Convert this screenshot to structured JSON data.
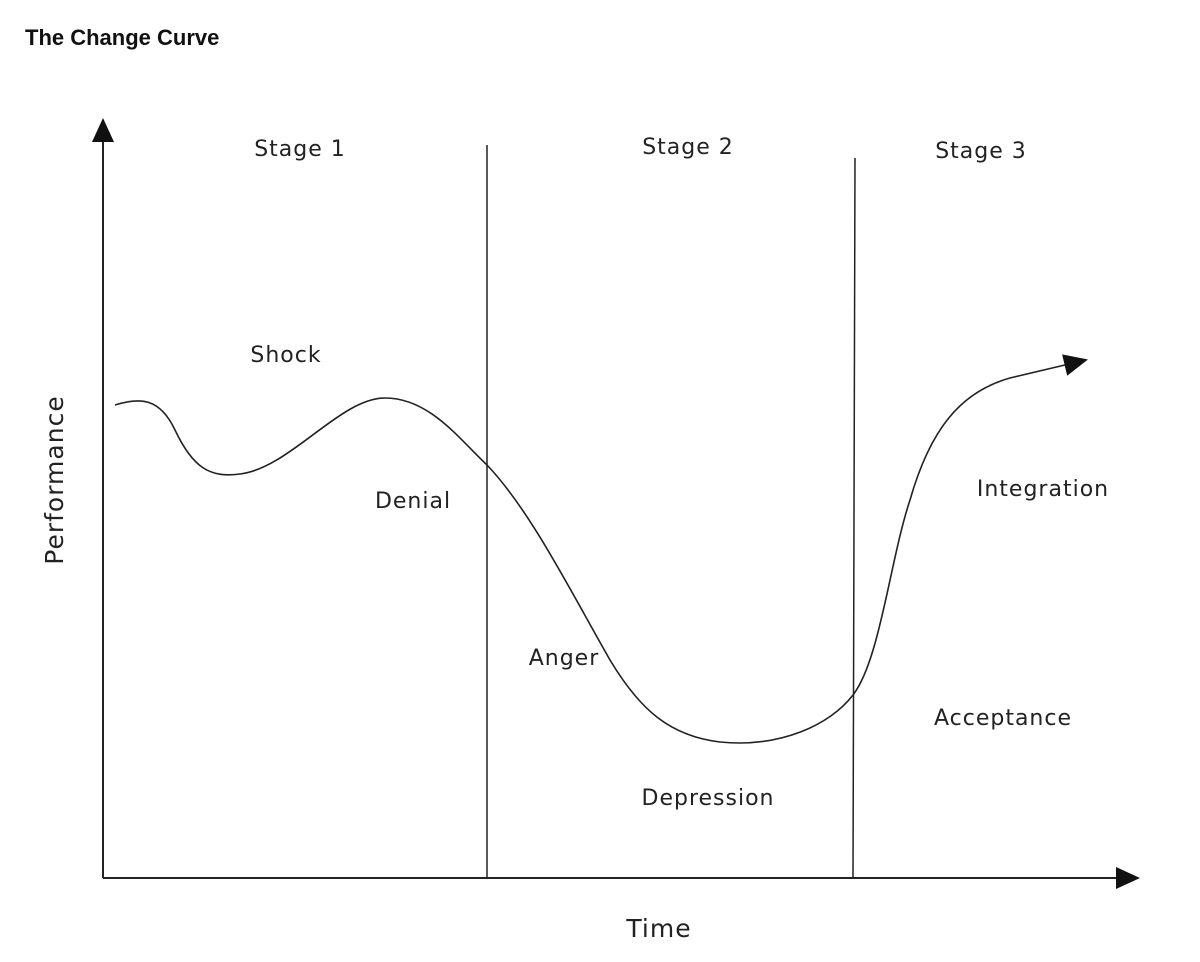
{
  "title": "The Change Curve",
  "axes": {
    "y_label": "Performance",
    "x_label": "Time"
  },
  "stages": [
    "Stage 1",
    "Stage 2",
    "Stage 3"
  ],
  "phases": [
    "Shock",
    "Denial",
    "Anger",
    "Depression",
    "Acceptance",
    "Integration"
  ]
}
